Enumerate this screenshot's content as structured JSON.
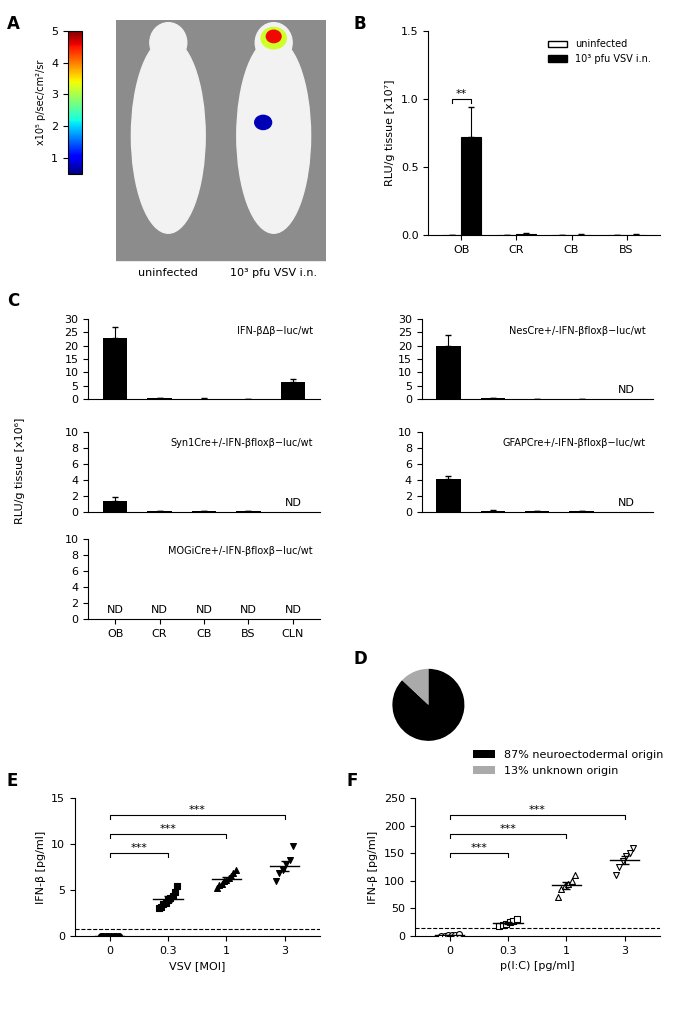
{
  "chart_data": [
    {
      "title": "A",
      "type": "image",
      "colorbar_label": "x10⁵ p/sec/cm²/sr",
      "colorbar_range": [
        0.5,
        5
      ],
      "colorbar_ticks": [
        1,
        2,
        3,
        4,
        5
      ],
      "annotations": [
        "uninfected",
        "10³ pfu VSV i.n."
      ]
    },
    {
      "title": "B",
      "type": "bar",
      "categories": [
        "OB",
        "CR",
        "CB",
        "BS"
      ],
      "ylabel": "RLU/g tissue [x10⁷]",
      "ylim": [
        0,
        1.5
      ],
      "yticks": [
        {
          "value": 0,
          "label": "0.0"
        },
        {
          "value": 0.5,
          "label": "0.5"
        },
        {
          "value": 1,
          "label": "1.0"
        },
        {
          "value": 1.5,
          "label": "1.5"
        }
      ],
      "legend": "upper right",
      "series": [
        {
          "name": "uninfected",
          "color": "#ffffff",
          "values": [
            0.002,
            0.002,
            0.002,
            0.002
          ],
          "errors": [
            0,
            0,
            0,
            0
          ]
        },
        {
          "name": "10³ pfu VSV i.n.",
          "color": "#000000",
          "values": [
            0.72,
            0.01,
            0.004,
            0.004
          ],
          "errors": [
            0.22,
            0.004,
            0.002,
            0.002
          ]
        }
      ],
      "significance": [
        {
          "category": "OB",
          "label": "**"
        }
      ]
    },
    {
      "title": "C",
      "type": "bar",
      "ylabel": "RLU/g tissue [x10⁶]",
      "categories": [
        "OB",
        "CR",
        "CB",
        "BS",
        "CLN"
      ],
      "color": "#000000",
      "panels": [
        {
          "subtitle": "IFN-βΔβ−luc/wt",
          "values": [
            23,
            0.4,
            0.15,
            0.1,
            6.3
          ],
          "errors": [
            4,
            0.15,
            0.05,
            0.05,
            1.2
          ],
          "value_labels": [
            null,
            null,
            null,
            null,
            null
          ],
          "ylim": [
            0,
            30
          ],
          "yticks": [
            0,
            5,
            10,
            15,
            20,
            25,
            30
          ],
          "tick_labels": "y"
        },
        {
          "subtitle": "NesCre+/-IFN-βfloxβ−luc/wt",
          "values": [
            20,
            0.2,
            0.1,
            0.1,
            null
          ],
          "errors": [
            4,
            0.05,
            0.03,
            0.03,
            null
          ],
          "value_labels": [
            null,
            null,
            null,
            null,
            "ND"
          ],
          "ylim": [
            0,
            30
          ],
          "yticks": [
            0,
            5,
            10,
            15,
            20,
            25,
            30
          ],
          "tick_labels": "y"
        },
        {
          "subtitle": "Syn1Cre+/-IFN-βfloxβ−luc/wt",
          "values": [
            1.3,
            0.05,
            0.02,
            0.05,
            null
          ],
          "errors": [
            0.5,
            0.02,
            0.01,
            0.02,
            null
          ],
          "value_labels": [
            null,
            null,
            null,
            null,
            "ND"
          ],
          "ylim": [
            0,
            10
          ],
          "yticks": [
            0,
            2,
            4,
            6,
            8,
            10
          ],
          "tick_labels": "y"
        },
        {
          "subtitle": "GFAPCre+/-IFN-βfloxβ−luc/wt",
          "values": [
            4.1,
            0.1,
            0.03,
            0.03,
            null
          ],
          "errors": [
            0.4,
            0.04,
            0.01,
            0.01,
            null
          ],
          "value_labels": [
            null,
            null,
            null,
            null,
            "ND"
          ],
          "ylim": [
            0,
            10
          ],
          "yticks": [
            0,
            2,
            4,
            6,
            8,
            10
          ],
          "tick_labels": "y"
        },
        {
          "subtitle": "MOGiCre+/-IFN-βfloxβ−luc/wt",
          "values": [
            null,
            null,
            null,
            null,
            null
          ],
          "errors": [
            null,
            null,
            null,
            null,
            null
          ],
          "value_labels": [
            "ND",
            "ND",
            "ND",
            "ND",
            "ND"
          ],
          "ylim": [
            0,
            10
          ],
          "yticks": [
            0,
            2,
            4,
            6,
            8,
            10
          ],
          "tick_labels": true
        }
      ]
    },
    {
      "title": "D",
      "type": "pie",
      "values": [
        87,
        13
      ],
      "colors": [
        "#000000",
        "#aaaaaa"
      ],
      "labels": [
        "87% neuroectodermal origin",
        "13% unknown origin"
      ],
      "legend": "lower right"
    },
    {
      "title": "E",
      "type": "scatter",
      "xlabel": "VSV [MOI]",
      "ylabel": "IFN-β [pg/ml]",
      "categories": [
        "0",
        "0.3",
        "1",
        "3"
      ],
      "ylim": [
        0,
        15
      ],
      "yticks": [
        0,
        5,
        10,
        15
      ],
      "reference_line": 0.8,
      "color": "#000000",
      "groups": [
        {
          "marker": "circle",
          "values": [
            0,
            0,
            0,
            0,
            0,
            0,
            0,
            0
          ],
          "mean": 0,
          "error": 0
        },
        {
          "marker": "square",
          "values": [
            3.0,
            3.2,
            3.5,
            3.6,
            3.9,
            4.1,
            4.4,
            4.8,
            5.4
          ],
          "mean": 4.0,
          "error": 0.3
        },
        {
          "marker": "triangle_up",
          "values": [
            5.2,
            5.5,
            5.7,
            6.0,
            6.1,
            6.3,
            6.5,
            6.8,
            7.2
          ],
          "mean": 6.2,
          "error": 0.25
        },
        {
          "marker": "triangle_down",
          "values": [
            6.0,
            6.8,
            7.2,
            7.8,
            8.3,
            9.8
          ],
          "mean": 7.6,
          "error": 0.5
        }
      ],
      "significance": [
        {
          "from": "0",
          "to": "0.3",
          "label": "***"
        },
        {
          "from": "0",
          "to": "1",
          "label": "***"
        },
        {
          "from": "0",
          "to": "3",
          "label": "***"
        }
      ]
    },
    {
      "title": "F",
      "type": "scatter",
      "xlabel": "p(I:C) [pg/ml]",
      "ylabel": "IFN-β [pg/ml]",
      "categories": [
        "0",
        "0.3",
        "1",
        "3"
      ],
      "ylim": [
        0,
        250
      ],
      "yticks": [
        0,
        50,
        100,
        150,
        200,
        250
      ],
      "reference_line": 15,
      "color": "#000000",
      "groups": [
        {
          "marker": "open_circle",
          "values": [
            0,
            0,
            1,
            1,
            2,
            3
          ],
          "mean": 1,
          "error": 0.5
        },
        {
          "marker": "open_square",
          "values": [
            18,
            20,
            22,
            25,
            28,
            30
          ],
          "mean": 24,
          "error": 2
        },
        {
          "marker": "open_triangle_up",
          "values": [
            70,
            85,
            90,
            95,
            100,
            110
          ],
          "mean": 92,
          "error": 6
        },
        {
          "marker": "open_triangle_down",
          "values": [
            110,
            125,
            135,
            145,
            150,
            160
          ],
          "mean": 138,
          "error": 7
        }
      ],
      "significance": [
        {
          "from": "0",
          "to": "0.3",
          "label": "***"
        },
        {
          "from": "0",
          "to": "1",
          "label": "***"
        },
        {
          "from": "0",
          "to": "3",
          "label": "***"
        }
      ]
    }
  ]
}
